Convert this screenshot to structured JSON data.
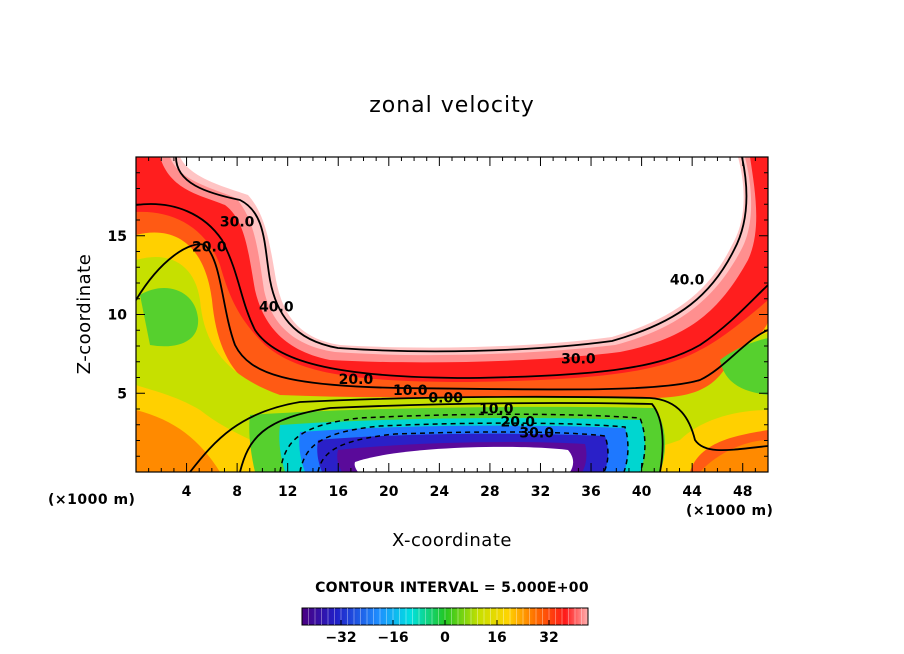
{
  "chart_data": {
    "type": "contour",
    "title": "zonal velocity",
    "xlabel": "X-coordinate",
    "ylabel": "Z-coordinate",
    "x_unit": "(×1000 m)",
    "y_unit": "(×1000 m)",
    "xlim": [
      0,
      50
    ],
    "ylim": [
      0,
      20
    ],
    "x_ticks": [
      "4",
      "8",
      "12",
      "16",
      "20",
      "24",
      "28",
      "32",
      "36",
      "40",
      "44",
      "48"
    ],
    "y_ticks": [
      "5",
      "10",
      "15"
    ],
    "x_tick_values": [
      4,
      8,
      12,
      16,
      20,
      24,
      28,
      32,
      36,
      40,
      44,
      48
    ],
    "y_tick_values": [
      5,
      10,
      15
    ],
    "contour_interval_text": "CONTOUR INTERVAL = 5.000E+00",
    "contour_labels": [
      {
        "text": "30.0",
        "x": 8.0,
        "y": 15.6
      },
      {
        "text": "20.0",
        "x": 5.8,
        "y": 14.0
      },
      {
        "text": "40.0",
        "x": 11.1,
        "y": 10.2
      },
      {
        "text": "20.0",
        "x": 17.4,
        "y": 5.6
      },
      {
        "text": "10.0",
        "x": 21.7,
        "y": 4.9
      },
      {
        "text": "0.00",
        "x": 24.5,
        "y": 4.4
      },
      {
        "text": "10.0",
        "x": 28.5,
        "y": 3.7
      },
      {
        "text": "20.0",
        "x": 30.2,
        "y": 2.9
      },
      {
        "text": "30.0",
        "x": 31.7,
        "y": 2.2
      },
      {
        "text": "30.0",
        "x": 35.0,
        "y": 6.9
      },
      {
        "text": "40.0",
        "x": 43.6,
        "y": 11.9
      }
    ],
    "colorbar": {
      "ticks": [
        "−32",
        "−16",
        "0",
        "16",
        "32"
      ],
      "tick_values": [
        -32,
        -16,
        0,
        16,
        32
      ],
      "range": [
        -44,
        44
      ]
    }
  }
}
